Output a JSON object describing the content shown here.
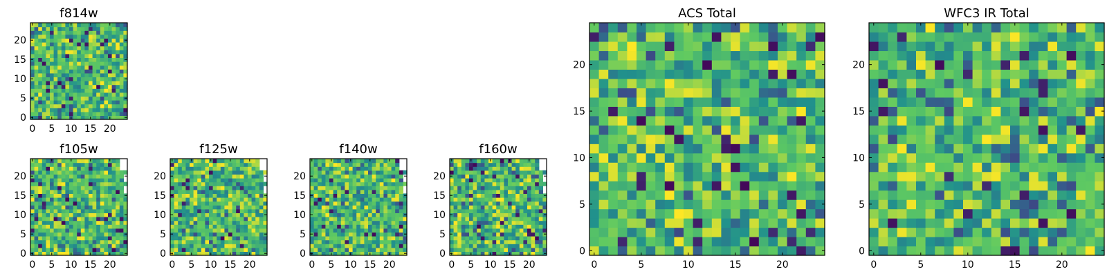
{
  "colormap": [
    "#440154",
    "#3b528b",
    "#21918c",
    "#5ec962",
    "#fde725"
  ],
  "chart_data": [
    {
      "id": "f814w",
      "type": "heatmap",
      "title": "f814w",
      "xlim": [
        0,
        25
      ],
      "ylim": [
        0,
        25
      ],
      "xticks": [
        "0",
        "5",
        "10",
        "15",
        "20"
      ],
      "yticks": [
        "0",
        "5",
        "10",
        "15",
        "20"
      ],
      "grid_size": 25,
      "missing_corner": false,
      "seed": 814
    },
    {
      "id": "f105w",
      "type": "heatmap",
      "title": "f105w",
      "xlim": [
        0,
        25
      ],
      "ylim": [
        0,
        25
      ],
      "xticks": [
        "0",
        "5",
        "10",
        "15",
        "20"
      ],
      "yticks": [
        "0",
        "5",
        "10",
        "15",
        "20"
      ],
      "grid_size": 25,
      "missing_corner": true,
      "seed": 105
    },
    {
      "id": "f125w",
      "type": "heatmap",
      "title": "f125w",
      "xlim": [
        0,
        25
      ],
      "ylim": [
        0,
        25
      ],
      "xticks": [
        "0",
        "5",
        "10",
        "15",
        "20"
      ],
      "yticks": [
        "0",
        "5",
        "10",
        "15",
        "20"
      ],
      "grid_size": 25,
      "missing_corner": true,
      "seed": 125
    },
    {
      "id": "f140w",
      "type": "heatmap",
      "title": "f140w",
      "xlim": [
        0,
        25
      ],
      "ylim": [
        0,
        25
      ],
      "xticks": [
        "0",
        "5",
        "10",
        "15",
        "20"
      ],
      "yticks": [
        "0",
        "5",
        "10",
        "15",
        "20"
      ],
      "grid_size": 25,
      "missing_corner": true,
      "seed": 140
    },
    {
      "id": "f160w",
      "type": "heatmap",
      "title": "f160w",
      "xlim": [
        0,
        25
      ],
      "ylim": [
        0,
        25
      ],
      "xticks": [
        "0",
        "5",
        "10",
        "15",
        "20"
      ],
      "yticks": [
        "0",
        "5",
        "10",
        "15",
        "20"
      ],
      "grid_size": 25,
      "missing_corner": true,
      "seed": 160
    },
    {
      "id": "acs-total",
      "type": "heatmap",
      "title": "ACS Total",
      "xlim": [
        0,
        25
      ],
      "ylim": [
        0,
        25
      ],
      "xticks": [
        "0",
        "5",
        "10",
        "15",
        "20"
      ],
      "yticks": [
        "0",
        "5",
        "10",
        "15",
        "20"
      ],
      "grid_size": 25,
      "missing_corner": false,
      "seed": 999
    },
    {
      "id": "wfc3-ir-total",
      "type": "heatmap",
      "title": "WFC3 IR Total",
      "xlim": [
        0,
        25
      ],
      "ylim": [
        0,
        25
      ],
      "xticks": [
        "0",
        "5",
        "10",
        "15",
        "20"
      ],
      "yticks": [
        "0",
        "5",
        "10",
        "15",
        "20"
      ],
      "grid_size": 25,
      "missing_corner": false,
      "seed": 777
    }
  ]
}
